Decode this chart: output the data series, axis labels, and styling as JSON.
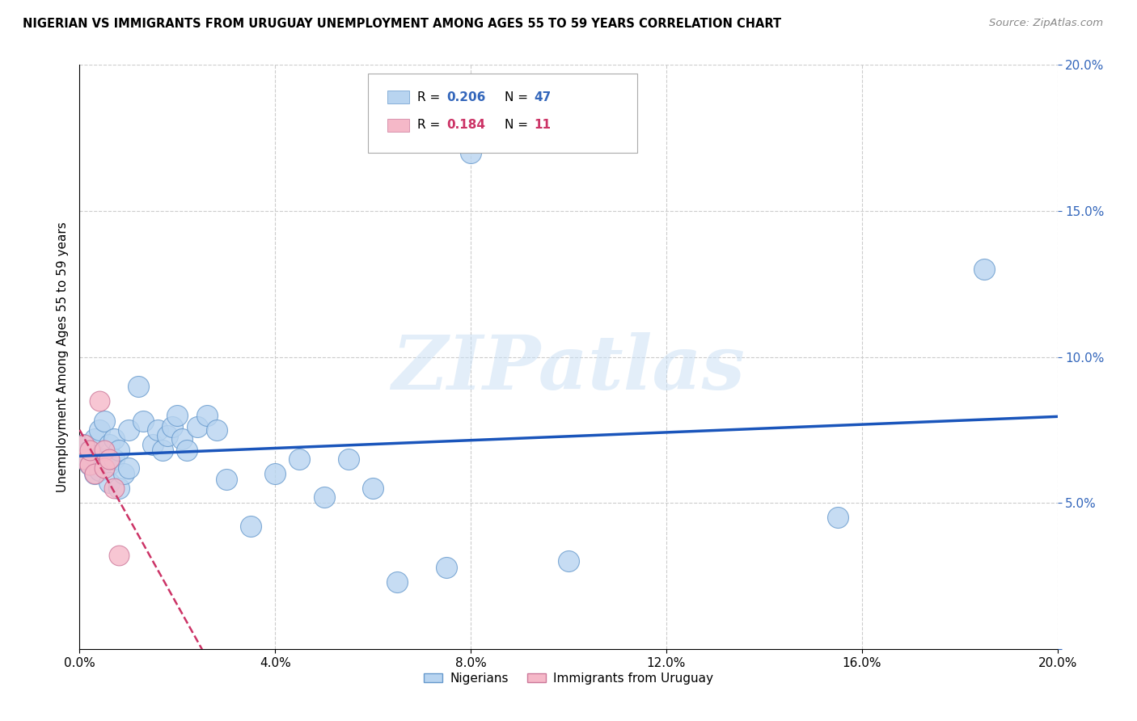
{
  "title": "NIGERIAN VS IMMIGRANTS FROM URUGUAY UNEMPLOYMENT AMONG AGES 55 TO 59 YEARS CORRELATION CHART",
  "source": "Source: ZipAtlas.com",
  "ylabel": "Unemployment Among Ages 55 to 59 years",
  "xlim": [
    0,
    0.2
  ],
  "ylim": [
    0,
    0.2
  ],
  "xticks": [
    0.0,
    0.04,
    0.08,
    0.12,
    0.16,
    0.2
  ],
  "yticks": [
    0.0,
    0.05,
    0.1,
    0.15,
    0.2
  ],
  "watermark": "ZIPatlas",
  "legend_r1": "0.206",
  "legend_n1": "47",
  "legend_r2": "0.184",
  "legend_n2": "11",
  "nigerian_color": "#b8d4f0",
  "nigerian_edge": "#6699cc",
  "uruguay_color": "#f5b8c8",
  "uruguay_edge": "#cc7799",
  "line_blue": "#1a55bb",
  "line_pink": "#cc3366",
  "background": "#ffffff",
  "grid_color": "#cccccc",
  "nigerian_x": [
    0.001,
    0.001,
    0.002,
    0.002,
    0.003,
    0.003,
    0.003,
    0.004,
    0.004,
    0.005,
    0.005,
    0.006,
    0.006,
    0.006,
    0.007,
    0.007,
    0.008,
    0.008,
    0.009,
    0.01,
    0.01,
    0.012,
    0.013,
    0.015,
    0.016,
    0.017,
    0.018,
    0.019,
    0.02,
    0.021,
    0.022,
    0.024,
    0.026,
    0.028,
    0.03,
    0.035,
    0.04,
    0.045,
    0.05,
    0.055,
    0.06,
    0.065,
    0.075,
    0.08,
    0.1,
    0.155,
    0.185
  ],
  "nigerian_y": [
    0.065,
    0.07,
    0.068,
    0.063,
    0.072,
    0.066,
    0.06,
    0.075,
    0.061,
    0.078,
    0.065,
    0.07,
    0.063,
    0.057,
    0.072,
    0.065,
    0.068,
    0.055,
    0.06,
    0.075,
    0.062,
    0.09,
    0.078,
    0.07,
    0.075,
    0.068,
    0.073,
    0.076,
    0.08,
    0.072,
    0.068,
    0.076,
    0.08,
    0.075,
    0.058,
    0.042,
    0.06,
    0.065,
    0.052,
    0.065,
    0.055,
    0.023,
    0.028,
    0.17,
    0.03,
    0.045,
    0.13
  ],
  "uruguay_x": [
    0.001,
    0.001,
    0.002,
    0.002,
    0.003,
    0.004,
    0.005,
    0.005,
    0.006,
    0.007,
    0.008
  ],
  "uruguay_y": [
    0.065,
    0.07,
    0.063,
    0.068,
    0.06,
    0.085,
    0.068,
    0.062,
    0.065,
    0.055,
    0.032
  ]
}
